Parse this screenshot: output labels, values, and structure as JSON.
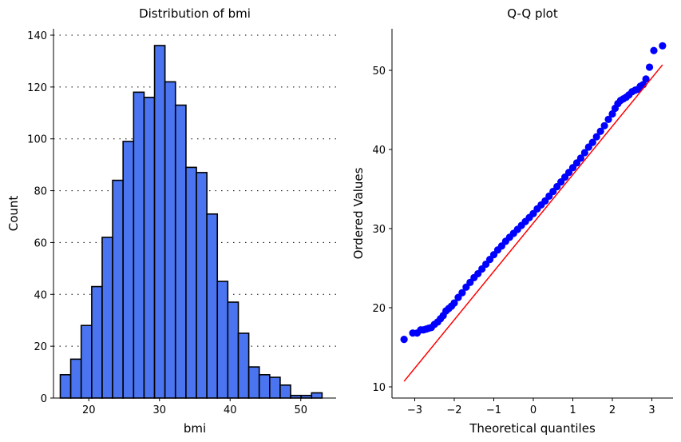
{
  "chart_data": [
    {
      "type": "bar",
      "subtype": "histogram",
      "title": "Distribution of bmi",
      "xlabel": "bmi",
      "ylabel": "Count",
      "xlim": [
        15,
        55
      ],
      "ylim": [
        0,
        140
      ],
      "xticks": [
        20,
        30,
        40,
        50
      ],
      "yticks": [
        0,
        20,
        40,
        60,
        80,
        100,
        120,
        140
      ],
      "grid": "horizontal dotted",
      "bar_color": "#4a74f0",
      "edge_color": "#000000",
      "bin_edges": [
        15.96,
        17.44,
        18.92,
        20.41,
        21.89,
        23.37,
        24.85,
        26.34,
        27.82,
        29.3,
        30.78,
        32.26,
        33.75,
        35.23,
        36.71,
        38.19,
        39.67,
        41.16,
        42.64,
        44.12,
        45.6,
        47.08,
        48.56,
        50.05,
        51.53,
        53.01
      ],
      "counts": [
        9,
        15,
        28,
        43,
        62,
        84,
        99,
        118,
        116,
        136,
        122,
        113,
        89,
        87,
        71,
        45,
        37,
        25,
        12,
        9,
        8,
        5,
        1,
        1,
        2
      ]
    },
    {
      "type": "scatter",
      "title": "Q-Q plot",
      "xlabel": "Theoretical quantiles",
      "ylabel": "Ordered Values",
      "xlim": [
        -3.5,
        3.5
      ],
      "ylim": [
        9,
        55
      ],
      "xticks": [
        -3,
        -2,
        -1,
        0,
        1,
        2,
        3
      ],
      "yticks": [
        10,
        20,
        30,
        40,
        50
      ],
      "point_color": "#0000ff",
      "line_color": "#ff0000",
      "fit_line": {
        "x": [
          -3.27,
          3.27
        ],
        "y": [
          10.7,
          50.7
        ]
      },
      "points": {
        "x": [
          -3.27,
          -3.05,
          -2.94,
          -2.85,
          -2.78,
          -2.71,
          -2.65,
          -2.58,
          -2.5,
          -2.42,
          -2.35,
          -2.28,
          -2.21,
          -2.14,
          -2.07,
          -2.0,
          -1.9,
          -1.8,
          -1.7,
          -1.6,
          -1.5,
          -1.4,
          -1.3,
          -1.2,
          -1.1,
          -1.0,
          -0.9,
          -0.8,
          -0.7,
          -0.6,
          -0.5,
          -0.4,
          -0.3,
          -0.2,
          -0.1,
          0.0,
          0.1,
          0.2,
          0.3,
          0.4,
          0.5,
          0.6,
          0.7,
          0.8,
          0.9,
          1.0,
          1.1,
          1.2,
          1.3,
          1.4,
          1.5,
          1.6,
          1.7,
          1.8,
          1.9,
          2.0,
          2.07,
          2.14,
          2.21,
          2.28,
          2.35,
          2.42,
          2.5,
          2.58,
          2.65,
          2.71,
          2.78,
          2.85,
          2.94,
          3.05,
          3.27
        ],
        "y": [
          16.0,
          16.8,
          16.8,
          17.2,
          17.2,
          17.3,
          17.4,
          17.5,
          17.9,
          18.2,
          18.6,
          19.0,
          19.6,
          19.9,
          20.2,
          20.6,
          21.3,
          21.9,
          22.6,
          23.2,
          23.8,
          24.3,
          24.9,
          25.5,
          26.1,
          26.7,
          27.3,
          27.8,
          28.4,
          28.9,
          29.4,
          29.9,
          30.4,
          30.9,
          31.4,
          31.9,
          32.5,
          33.0,
          33.5,
          34.1,
          34.7,
          35.3,
          35.9,
          36.5,
          37.1,
          37.7,
          38.3,
          38.9,
          39.6,
          40.3,
          40.9,
          41.6,
          42.3,
          43.0,
          43.8,
          44.5,
          45.2,
          45.8,
          46.2,
          46.4,
          46.6,
          46.9,
          47.3,
          47.5,
          47.6,
          48.0,
          48.2,
          48.9,
          50.4,
          52.5,
          53.1
        ]
      }
    }
  ]
}
